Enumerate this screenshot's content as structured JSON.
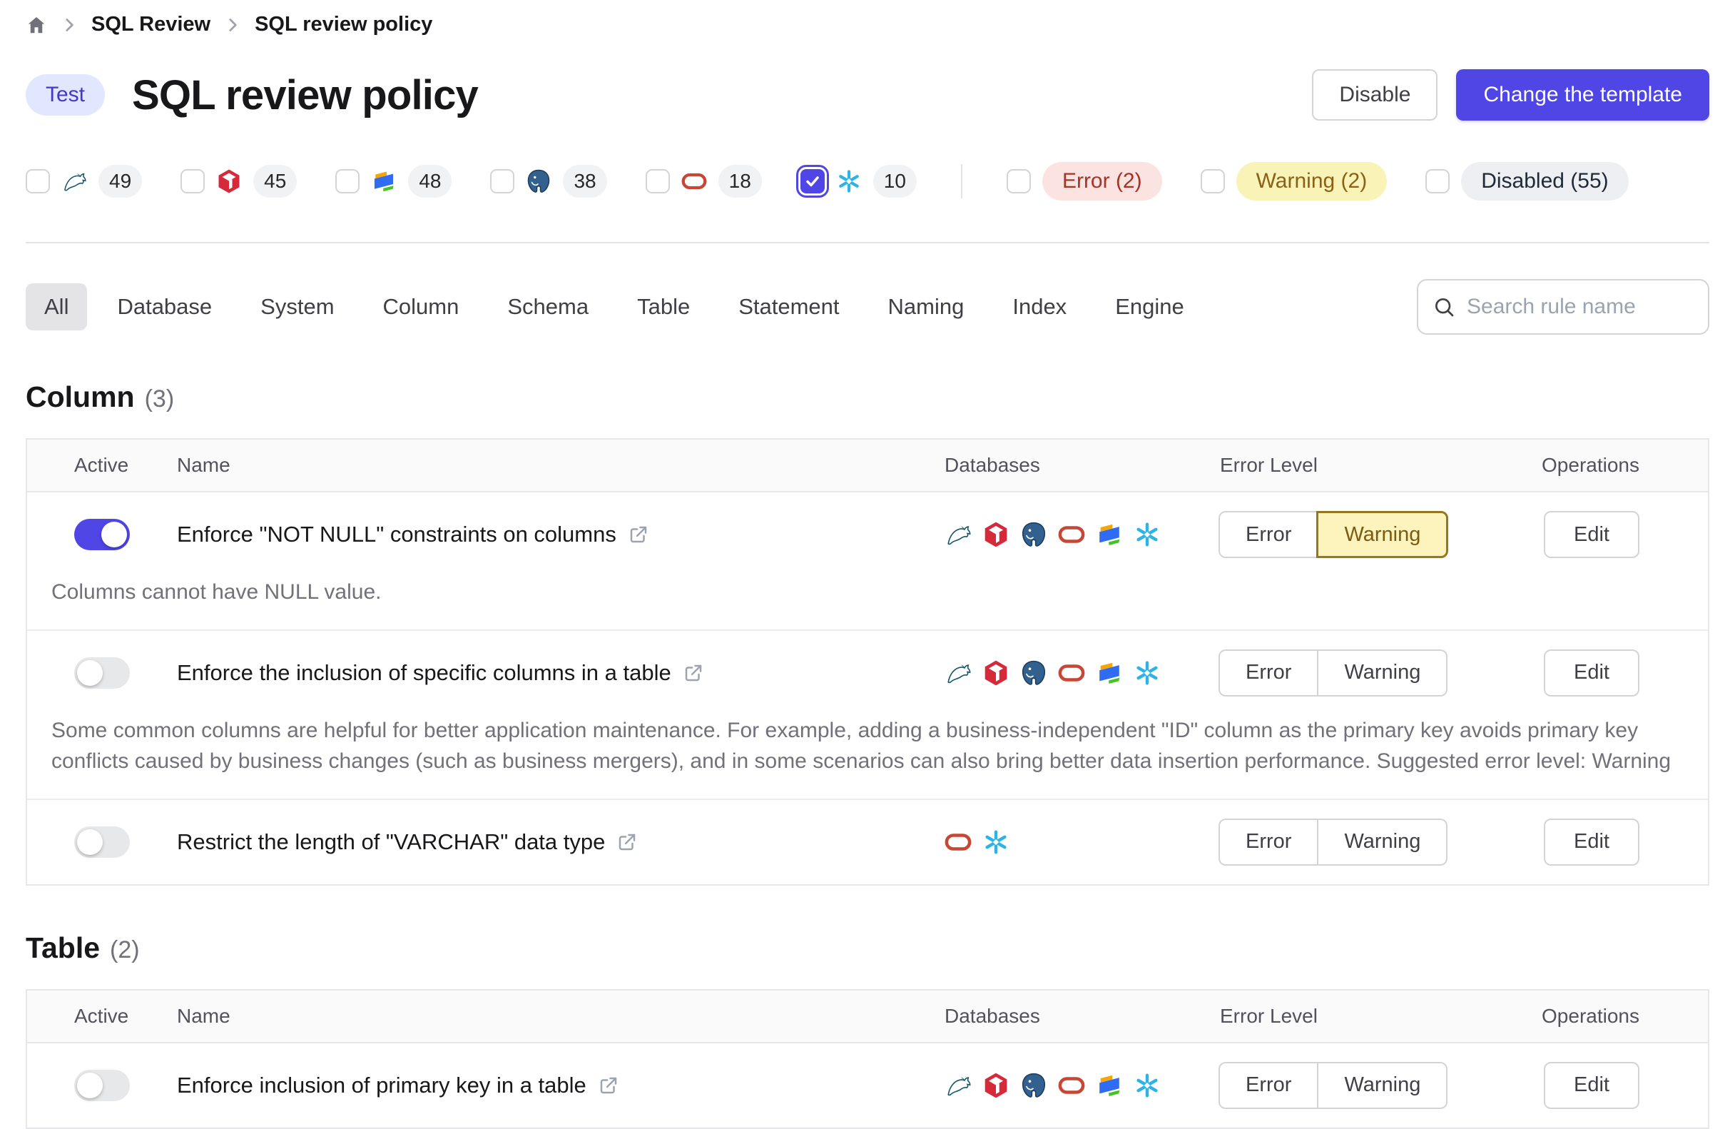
{
  "breadcrumb": {
    "items": [
      "SQL Review",
      "SQL review policy"
    ]
  },
  "header": {
    "badge": "Test",
    "title": "SQL review policy",
    "disable_label": "Disable",
    "change_template_label": "Change the template"
  },
  "colors": {
    "accent": "#4f46e5",
    "warning_selected_bg": "#fcf4bc",
    "error_pill_bg": "#fbe3e1",
    "warning_pill_bg": "#faf3b8"
  },
  "filters": {
    "engines": [
      {
        "name": "mysql",
        "count": "49",
        "checked": false
      },
      {
        "name": "tidb",
        "count": "45",
        "checked": false
      },
      {
        "name": "oceanbase",
        "count": "48",
        "checked": false
      },
      {
        "name": "postgres",
        "count": "38",
        "checked": false
      },
      {
        "name": "oracle",
        "count": "18",
        "checked": false
      },
      {
        "name": "snowflake",
        "count": "10",
        "checked": true
      }
    ],
    "levels": [
      {
        "type": "error",
        "label": "Error (2)"
      },
      {
        "type": "warning",
        "label": "Warning (2)"
      },
      {
        "type": "disabled",
        "label": "Disabled (55)"
      }
    ]
  },
  "tabs": {
    "items": [
      "All",
      "Database",
      "System",
      "Column",
      "Schema",
      "Table",
      "Statement",
      "Naming",
      "Index",
      "Engine"
    ],
    "active": "All",
    "search_placeholder": "Search rule name"
  },
  "table_headers": {
    "active": "Active",
    "name": "Name",
    "databases": "Databases",
    "error_level": "Error Level",
    "operations": "Operations"
  },
  "buttons": {
    "error": "Error",
    "warning": "Warning",
    "edit": "Edit"
  },
  "sections": [
    {
      "title": "Column",
      "count": "(3)",
      "rules": [
        {
          "name": "Enforce \"NOT NULL\" constraints on columns",
          "active": true,
          "engines": [
            "mysql",
            "tidb",
            "postgres",
            "oracle",
            "oceanbase",
            "snowflake"
          ],
          "level": "warning",
          "description": "Columns cannot have NULL value."
        },
        {
          "name": "Enforce the inclusion of specific columns in a table",
          "active": false,
          "engines": [
            "mysql",
            "tidb",
            "postgres",
            "oracle",
            "oceanbase",
            "snowflake"
          ],
          "level": null,
          "description": "Some common columns are helpful for better application maintenance. For example, adding a business-independent \"ID\" column as the primary key avoids primary key conflicts caused by business changes (such as business mergers), and in some scenarios can also bring better data insertion performance. Suggested error level: Warning"
        },
        {
          "name": "Restrict the length of \"VARCHAR\" data type",
          "active": false,
          "engines": [
            "oracle",
            "snowflake"
          ],
          "level": null,
          "description": null
        }
      ]
    },
    {
      "title": "Table",
      "count": "(2)",
      "rules": [
        {
          "name": "Enforce inclusion of primary key in a table",
          "active": false,
          "engines": [
            "mysql",
            "tidb",
            "postgres",
            "oracle",
            "oceanbase",
            "snowflake"
          ],
          "level": null,
          "description": null
        }
      ]
    }
  ]
}
